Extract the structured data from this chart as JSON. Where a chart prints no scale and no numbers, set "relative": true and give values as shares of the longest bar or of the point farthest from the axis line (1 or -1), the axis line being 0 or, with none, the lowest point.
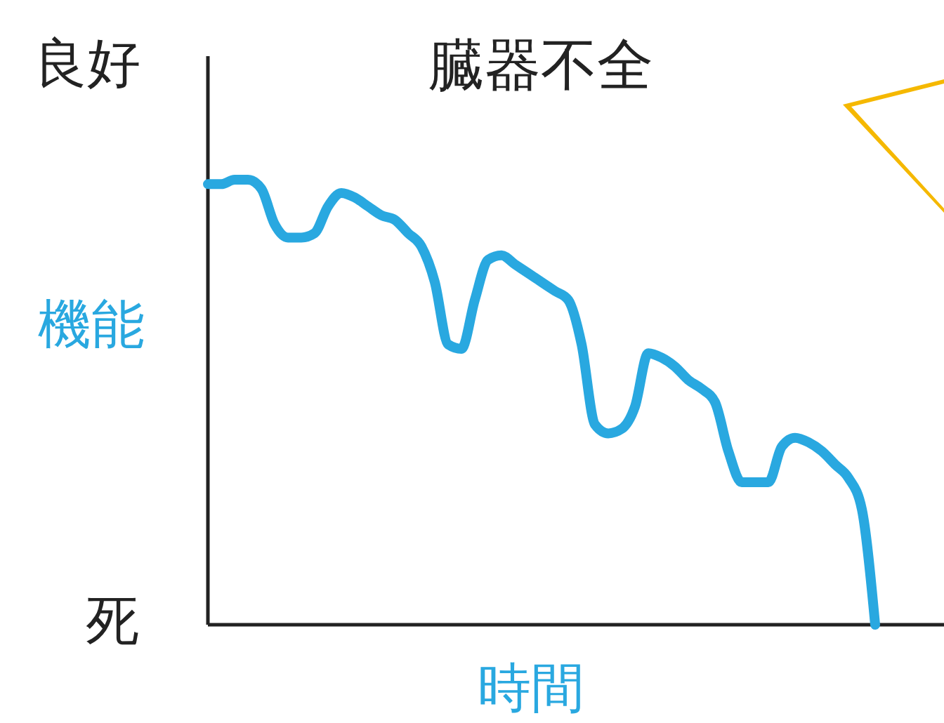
{
  "chart_data": {
    "type": "line",
    "title": "臓器不全",
    "xlabel": "時間",
    "ylabel": "機能",
    "relative": true,
    "annotations": [
      "良好",
      "死"
    ],
    "categories": [
      null,
      null,
      null,
      null,
      null,
      null,
      null,
      null,
      null,
      null,
      null,
      null,
      null,
      null,
      null,
      null,
      null,
      null,
      null,
      null,
      null,
      null,
      null,
      null,
      null,
      null,
      null,
      null,
      null,
      null,
      null,
      null,
      null,
      null,
      null,
      null,
      null,
      null,
      null,
      null,
      null,
      null,
      null,
      null,
      null,
      null,
      null,
      null,
      null,
      null,
      null
    ],
    "series": [
      {
        "color": "#29a8e0",
        "values": [
          0.99,
          0.99,
          1.0,
          1.0,
          0.98,
          0.9,
          0.87,
          0.87,
          0.88,
          0.94,
          0.97,
          0.96,
          0.94,
          0.92,
          0.91,
          0.88,
          0.85,
          0.77,
          0.63,
          0.62,
          0.73,
          0.82,
          0.83,
          0.81,
          0.79,
          0.77,
          0.75,
          0.73,
          0.63,
          0.45,
          0.43,
          0.44,
          0.49,
          0.61,
          0.6,
          0.58,
          0.55,
          0.53,
          0.5,
          0.39,
          0.32,
          0.32,
          0.32,
          0.4,
          0.42,
          0.41,
          0.39,
          0.36,
          0.33,
          0.26,
          0
        ]
      }
    ],
    "marker": "none",
    "line_style": "solid"
  }
}
